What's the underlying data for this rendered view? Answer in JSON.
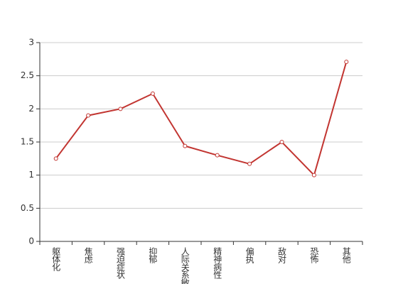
{
  "chart_data": {
    "type": "line",
    "categories": [
      "躯体化",
      "焦虑",
      "强迫症状",
      "抑郁",
      "人际关系敏感",
      "精神病性",
      "偏执",
      "敌对",
      "恐怖",
      "其他"
    ],
    "series": [
      {
        "name": "",
        "color": "#c23531",
        "values": [
          1.25,
          1.9,
          2.0,
          2.23,
          1.44,
          1.3,
          1.17,
          1.5,
          1.0,
          2.71
        ]
      }
    ],
    "ylim": [
      0,
      3
    ],
    "yticks": [
      0,
      0.5,
      1,
      1.5,
      2,
      2.5,
      3
    ],
    "grid": true
  }
}
